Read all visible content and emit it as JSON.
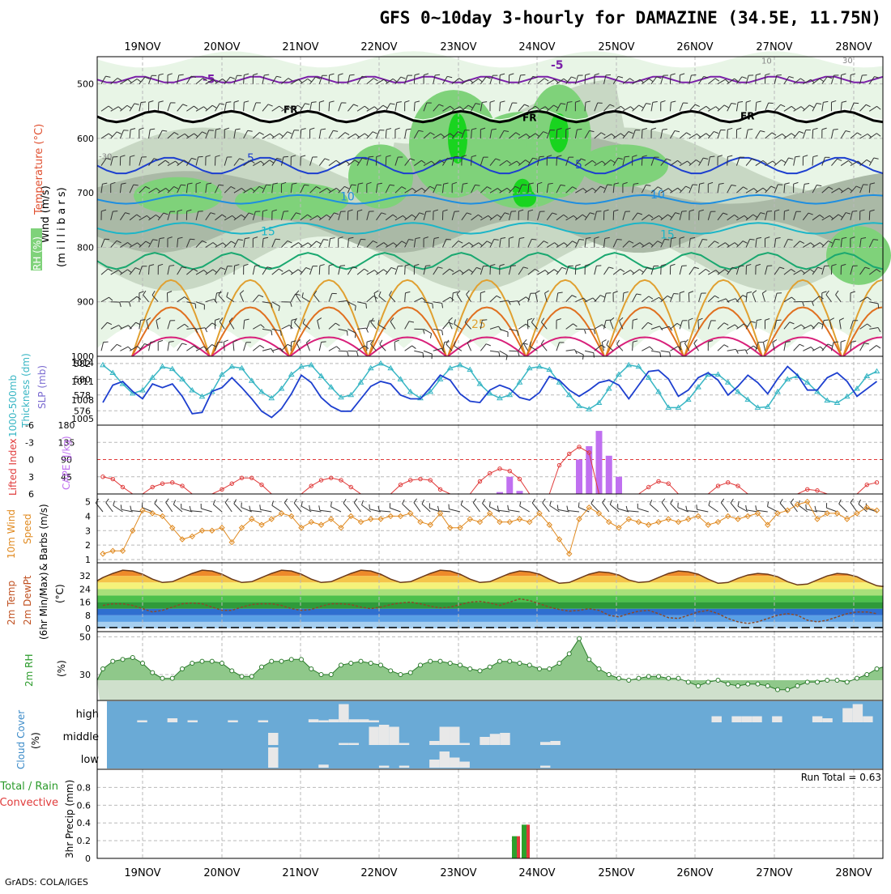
{
  "title": "GFS 0~10day 3-hourly for DAMAZINE (34.5E, 11.75N)",
  "footer": "GrADS: COLA/IGES",
  "colors": {
    "rh_light": "#e8f5e6",
    "rh_mid": "#c8d8c4",
    "rh_dark": "#aab9a6",
    "rh_green": "#7fd27a",
    "rh_bright": "#19d41f",
    "slp": "#1d3fcf",
    "thickness": "#38b6c4",
    "lifted": "#e03a3a",
    "cape": "#c070f0",
    "wind": "#e08a20",
    "cloud_bg": "#6aaad6",
    "precip_total": "#2ca02c",
    "precip_conv": "#e03a3a"
  },
  "chart_data": [
    {
      "type": "area",
      "panel": "upper-air",
      "ylabel_lines": [
        "Wind (m/s)",
        "Temperature (°C)",
        "RH (%)",
        "(millibars)"
      ],
      "ylabels": {
        "wind": "Wind (m/s)",
        "temp": "Temperature (°C)",
        "rh": "RH (%)",
        "pressure": "(m i l l i b a r s)"
      },
      "yticks": [
        500,
        600,
        700,
        800,
        900,
        1000
      ],
      "ylim": [
        1000,
        450
      ],
      "x_top": [
        "19NOV",
        "20NOV",
        "21NOV",
        "22NOV",
        "23NOV",
        "24NOV",
        "25NOV",
        "26NOV",
        "27NOV",
        "28NOV"
      ],
      "contour_labels": {
        "m5": "-5",
        "fr": "FR",
        "t5": "5",
        "t10": "10",
        "t15": "15",
        "t25": "25",
        "rh30": "30",
        "rh10": "10"
      }
    },
    {
      "type": "line",
      "panel": "slp-thickness",
      "ylabel_left": "1000-500mb Thickness (dm)",
      "ylabel_left_lines": [
        "1000-500mb",
        "Thickness (dm)"
      ],
      "ylabel_right": "SLP (mb)",
      "left_ticks": [
        "582",
        "580",
        "578",
        "576"
      ],
      "right_ticks": [
        "1014",
        "1011",
        "1008",
        "1005"
      ],
      "series": [
        {
          "name": "1000-500mb Thickness (dm)",
          "values": [
            581.4,
            581.8,
            580.8,
            579.4,
            578.2,
            578.6,
            580.2,
            581.6,
            581.3,
            580.0,
            578.6,
            577.8,
            578.4,
            580.6,
            581.6,
            581.4,
            579.8,
            578.4,
            577.6,
            578.8,
            580.6,
            581.6,
            581.8,
            580.4,
            579.0,
            577.7,
            578.0,
            579.6,
            581.4,
            582.0,
            581.4,
            580.0,
            578.4,
            577.6,
            578.4,
            580.0,
            581.4,
            581.8,
            581.2,
            579.4,
            578.2,
            577.6,
            578.0,
            579.6,
            581.4,
            581.6,
            581.2,
            579.6,
            578.0,
            576.6,
            576.2,
            577.0,
            578.8,
            580.6,
            581.8,
            581.6,
            580.2,
            578.4,
            576.4,
            576.4,
            577.4,
            579.0,
            580.6,
            580.6,
            579.6,
            578.4,
            577.4,
            576.4,
            576.5,
            578.4,
            580.0,
            580.4,
            579.6,
            578.4,
            577.3,
            577.0,
            577.8,
            578.8,
            580.4,
            581.0,
            580.4,
            578.8
          ]
        },
        {
          "name": "SLP (mb)",
          "values": [
            1007.2,
            1007.6,
            1010.4,
            1011.0,
            1009.4,
            1008.2,
            1010.6,
            1010.0,
            1010.6,
            1008.6,
            1005.8,
            1006.0,
            1009.4,
            1010.0,
            1011.6,
            1010.0,
            1008.2,
            1006.2,
            1005.2,
            1006.6,
            1009.0,
            1012.0,
            1010.8,
            1008.4,
            1007.0,
            1006.2,
            1006.2,
            1008.2,
            1010.2,
            1011.0,
            1010.6,
            1008.8,
            1008.2,
            1008.2,
            1010.0,
            1012.0,
            1011.2,
            1009.0,
            1007.8,
            1007.6,
            1009.6,
            1010.4,
            1009.8,
            1008.4,
            1008.0,
            1009.2,
            1011.8,
            1011.2,
            1009.6,
            1008.6,
            1009.6,
            1010.8,
            1011.2,
            1010.4,
            1008.2,
            1010.4,
            1012.6,
            1012.8,
            1011.4,
            1008.6,
            1009.6,
            1011.6,
            1012.4,
            1011.2,
            1008.8,
            1010.2,
            1012.0,
            1010.8,
            1009.0,
            1011.4,
            1013.4,
            1012.0,
            1009.6,
            1009.6,
            1011.6,
            1012.4,
            1011.0,
            1008.6,
            1009.8,
            1011.0,
            1012.0,
            1013.6
          ]
        }
      ]
    },
    {
      "type": "bar",
      "panel": "lifted-cape",
      "ylabel_left": "Lifted Index",
      "ylabel_right": "CAPE (J/kg)",
      "left_ticks": [
        "-6",
        "-3",
        "0",
        "3",
        "6"
      ],
      "right_ticks": [
        "180",
        "135",
        "90",
        "45"
      ],
      "series": [
        {
          "name": "Lifted Index",
          "values": [
            3.4,
            3.0,
            3.4,
            4.8,
            6.0,
            6.0,
            4.8,
            4.2,
            4.0,
            4.6,
            6.0,
            6.0,
            6.0,
            5.2,
            4.2,
            3.2,
            3.2,
            4.4,
            6.0,
            6.0,
            6.0,
            6.0,
            4.6,
            3.6,
            3.2,
            3.6,
            4.8,
            6.0,
            6.0,
            6.0,
            6.0,
            4.4,
            3.6,
            3.4,
            3.6,
            5.2,
            6.0,
            6.0,
            6.0,
            3.8,
            2.4,
            1.6,
            2.0,
            3.4,
            6.0,
            6.0,
            6.0,
            1.0,
            -1.0,
            -2.2,
            -1.2,
            6.0,
            6.0,
            6.0,
            6.0,
            6.0,
            4.8,
            3.8,
            4.2,
            6.0,
            6.0,
            6.0,
            6.0,
            4.6,
            4.0,
            4.6,
            6.0,
            6.0,
            6.0,
            6.0,
            6.0,
            6.0,
            5.2,
            5.4,
            6.0,
            6.0,
            6.0,
            6.0,
            4.4,
            4.0,
            5.2,
            6.0
          ]
        },
        {
          "name": "CAPE (J/kg)",
          "values": [
            0,
            0,
            0,
            0,
            0,
            0,
            0,
            0,
            0,
            0,
            0,
            0,
            0,
            0,
            0,
            0,
            0,
            0,
            0,
            0,
            0,
            0,
            0,
            0,
            0,
            0,
            0,
            0,
            0,
            0,
            0,
            0,
            0,
            0,
            0,
            0,
            0,
            0,
            0,
            0,
            0,
            5,
            45,
            8,
            0,
            0,
            0,
            0,
            0,
            90,
            125,
            165,
            100,
            45,
            0,
            0,
            0,
            0,
            0,
            0,
            0,
            0,
            0,
            0,
            0,
            0,
            0,
            0,
            0,
            0,
            0,
            0,
            0,
            0,
            0,
            0,
            0,
            0,
            0,
            0,
            0,
            0
          ]
        }
      ]
    },
    {
      "type": "line",
      "panel": "wind10m",
      "ylabel": "10m Wind Speed & Barbs (m/s)",
      "ylabel_lines": [
        "10m Wind",
        "Speed",
        "& Barbs (m/s)"
      ],
      "yticks": [
        "5",
        "4",
        "3",
        "2",
        "1"
      ],
      "series": [
        {
          "name": "10m Wind Speed",
          "values": [
            1.0,
            1.4,
            1.6,
            1.6,
            3.0,
            4.4,
            4.2,
            4.0,
            3.2,
            2.4,
            2.6,
            3.0,
            3.0,
            3.2,
            2.2,
            3.2,
            3.8,
            3.4,
            3.8,
            4.2,
            4.0,
            3.2,
            3.6,
            3.4,
            3.8,
            3.2,
            4.0,
            3.6,
            3.8,
            3.8,
            4.0,
            4.0,
            4.2,
            3.6,
            3.4,
            4.2,
            3.2,
            3.2,
            3.8,
            3.6,
            4.2,
            3.6,
            3.6,
            3.8,
            3.6,
            4.2,
            3.4,
            2.4,
            1.4,
            3.8,
            4.6,
            4.2,
            3.6,
            3.2,
            3.8,
            3.6,
            3.4,
            3.6,
            3.8,
            3.6,
            3.8,
            4.0,
            3.4,
            3.6,
            4.0,
            3.8,
            4.0,
            4.2,
            3.4,
            4.2,
            4.4,
            4.8,
            5.0,
            3.8,
            4.2,
            4.2,
            3.8,
            4.2,
            4.6,
            4.4,
            3.8,
            4.0
          ]
        }
      ]
    },
    {
      "type": "area",
      "panel": "temp-dewpt",
      "ylabel": "2m Temp 2m DewPt (6hr Min/Max) (°C)",
      "ylabel_lines": [
        "2m Temp",
        "2m DewPt",
        "(6hr Min/Max)",
        "(°C)"
      ],
      "yticks": [
        "32",
        "24",
        "16",
        "8",
        "0"
      ],
      "series": [
        {
          "name": "2m Temp",
          "values": [
            29.0,
            31.0,
            33.5,
            35.5,
            35.0,
            33.0,
            30.0,
            28.0,
            28.5,
            31.0,
            33.5,
            35.5,
            35.0,
            33.0,
            30.0,
            28.0,
            28.5,
            31.0,
            33.5,
            35.5,
            35.0,
            33.0,
            30.0,
            28.0,
            28.5,
            31.0,
            33.5,
            35.5,
            35.0,
            33.0,
            30.0,
            28.0,
            28.5,
            31.0,
            33.5,
            35.5,
            35.0,
            33.0,
            30.0,
            28.0,
            28.5,
            31.0,
            33.5,
            35.0,
            34.5,
            33.0,
            30.0,
            27.5,
            28.0,
            30.5,
            33.0,
            34.5,
            34.0,
            32.5,
            29.5,
            28.0,
            28.5,
            31.0,
            33.5,
            35.0,
            34.5,
            33.0,
            30.0,
            27.5,
            28.0,
            30.5,
            32.5,
            33.5,
            33.0,
            31.5,
            28.5,
            26.5,
            27.0,
            29.5,
            32.0,
            33.5,
            33.0,
            31.5,
            28.5,
            26.0,
            25.5,
            26.0
          ]
        },
        {
          "name": "2m DewPt",
          "values": [
            12.0,
            14.0,
            15.0,
            15.0,
            14.0,
            12.0,
            10.0,
            11.0,
            13.0,
            15.0,
            15.5,
            15.0,
            13.0,
            11.0,
            11.0,
            13.0,
            14.5,
            15.0,
            15.0,
            14.0,
            12.0,
            11.0,
            11.5,
            13.5,
            15.0,
            15.0,
            14.5,
            13.0,
            12.0,
            13.0,
            14.5,
            15.5,
            16.0,
            15.0,
            13.5,
            12.5,
            13.0,
            14.5,
            16.0,
            16.5,
            15.5,
            14.0,
            16.0,
            18.0,
            17.0,
            15.0,
            13.0,
            11.5,
            10.5,
            11.0,
            12.0,
            11.0,
            8.0,
            7.0,
            9.0,
            10.5,
            11.0,
            9.0,
            6.5,
            6.0,
            8.0,
            10.0,
            11.0,
            9.0,
            6.0,
            4.0,
            3.0,
            4.0,
            6.0,
            8.0,
            9.0,
            8.0,
            5.0,
            4.0,
            5.0,
            7.0,
            9.0,
            10.0,
            10.0,
            9.0,
            8.5,
            9.0
          ]
        }
      ]
    },
    {
      "type": "area",
      "panel": "rh2m",
      "ylabel": "2m RH (%)",
      "yticks": [
        "50",
        "30"
      ],
      "series": [
        {
          "name": "2m RH",
          "values": [
            27,
            33,
            37,
            38,
            39,
            36,
            31,
            28,
            28,
            33,
            36,
            37,
            37,
            36,
            32,
            29,
            29,
            34,
            37,
            37,
            38,
            38,
            33,
            30,
            30,
            35,
            36,
            37,
            36,
            35,
            32,
            30,
            31,
            35,
            37,
            37,
            36,
            35,
            33,
            32,
            34,
            37,
            37,
            36,
            35,
            33,
            33,
            36,
            41,
            49,
            38,
            33,
            30,
            28,
            27,
            28,
            29,
            29,
            28,
            28,
            26,
            24,
            26,
            27,
            25,
            24,
            25,
            25,
            24,
            22,
            22,
            24,
            26,
            26,
            27,
            27,
            26,
            28,
            30,
            33,
            34,
            35
          ]
        }
      ]
    },
    {
      "type": "bar",
      "panel": "cloud-cover",
      "ylabel": "Cloud Cover (%)",
      "levels": [
        "high",
        "middle",
        "low"
      ]
    },
    {
      "type": "bar",
      "panel": "precip",
      "ylabel": "3hr Precip (mm)",
      "legend": [
        "Total / Rain",
        "Convective"
      ],
      "run_total": "Run Total = 0.63",
      "yticks": [
        "0.8",
        "0.6",
        "0.4",
        "0.2",
        "0"
      ],
      "series": [
        {
          "name": "Total / Rain",
          "x": [
            "23NOV 18Z",
            "23NOV 21Z"
          ],
          "values": [
            0.25,
            0.38
          ]
        },
        {
          "name": "Convective",
          "x": [
            "23NOV 18Z",
            "23NOV 21Z"
          ],
          "values": [
            0.25,
            0.38
          ]
        }
      ],
      "x_bottom": [
        "19NOV",
        "20NOV",
        "21NOV",
        "22NOV",
        "23NOV",
        "24NOV",
        "25NOV",
        "26NOV",
        "27NOV",
        "28NOV"
      ]
    }
  ]
}
